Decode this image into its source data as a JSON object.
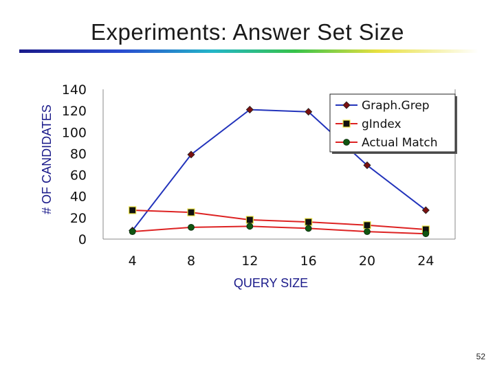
{
  "slide": {
    "title": "Experiments: Answer Set Size",
    "page_number": "52"
  },
  "chart_data": {
    "type": "line",
    "title": "",
    "xlabel": "QUERY SIZE",
    "ylabel": "# OF CANDIDATES",
    "x": [
      4,
      8,
      12,
      16,
      20,
      24
    ],
    "x_tick_labels": [
      "4",
      "8",
      "12",
      "16",
      "20",
      "24"
    ],
    "y_ticks": [
      0,
      20,
      40,
      60,
      80,
      100,
      120,
      140
    ],
    "ylim": [
      0,
      140
    ],
    "grid": false,
    "legend_position": "top-right",
    "series": [
      {
        "name": "Graph.Grep",
        "values": [
          8,
          79,
          121,
          119,
          69,
          27
        ],
        "line_color": "#2233bb",
        "marker": "diamond",
        "marker_color": "#7a1010"
      },
      {
        "name": "gIndex",
        "values": [
          27,
          25,
          18,
          16,
          13,
          9
        ],
        "line_color": "#dd2222",
        "marker": "square",
        "marker_color": "#111111"
      },
      {
        "name": "Actual Match",
        "values": [
          7,
          11,
          12,
          10,
          7,
          5
        ],
        "line_color": "#dd2222",
        "marker": "circle",
        "marker_color": "#115511"
      }
    ]
  }
}
